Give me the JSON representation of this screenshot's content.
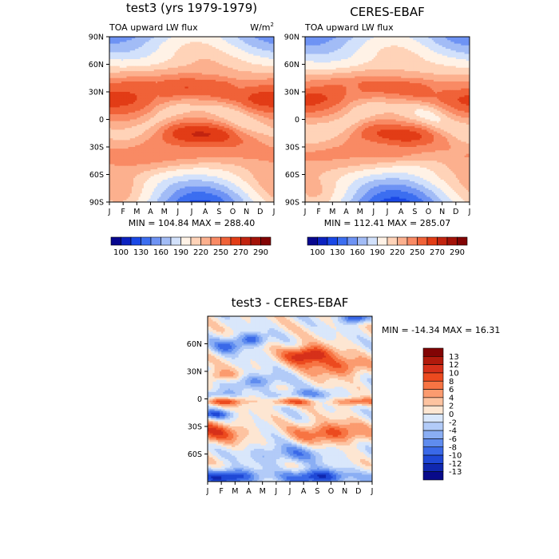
{
  "chart_data": [
    {
      "type": "heatmap",
      "title": "test3 (yrs 1979-1979)",
      "left_label": "TOA upward LW flux",
      "units_label": "W/m",
      "units_exp": "2",
      "xlabel": "",
      "ylabel": "",
      "x_ticks": [
        "J",
        "F",
        "M",
        "A",
        "M",
        "J",
        "J",
        "A",
        "S",
        "O",
        "N",
        "D",
        "J"
      ],
      "y_ticks": [
        "90N",
        "60N",
        "30N",
        "0",
        "30S",
        "60S",
        "90S"
      ],
      "ylim": [
        -90,
        90
      ],
      "stats_text": "MIN = 104.84 MAX = 288.40",
      "min": 104.84,
      "max": 288.4,
      "grid": false
    },
    {
      "type": "heatmap",
      "title": "CERES-EBAF",
      "left_label": "TOA upward LW flux",
      "x_ticks": [
        "J",
        "F",
        "M",
        "A",
        "M",
        "J",
        "J",
        "A",
        "S",
        "O",
        "N",
        "D",
        "J"
      ],
      "y_ticks": [
        "90N",
        "60N",
        "30N",
        "0",
        "30S",
        "60S",
        "90S"
      ],
      "ylim": [
        -90,
        90
      ],
      "stats_text": "MIN = 112.41 MAX = 285.07",
      "min": 112.41,
      "max": 285.07,
      "grid": false
    },
    {
      "type": "heatmap",
      "title": "test3 - CERES-EBAF",
      "x_ticks": [
        "J",
        "F",
        "M",
        "A",
        "M",
        "J",
        "J",
        "A",
        "S",
        "O",
        "N",
        "D",
        "J"
      ],
      "y_ticks": [
        "60N",
        "30N",
        "0",
        "30S",
        "60S"
      ],
      "ylim": [
        -90,
        90
      ],
      "stats_text": "MIN = -14.34 MAX =  16.31",
      "min": -14.34,
      "max": 16.31,
      "grid": false
    }
  ],
  "colorbar_top": {
    "labels": [
      "100",
      "130",
      "160",
      "190",
      "220",
      "250",
      "270",
      "290"
    ],
    "colors": [
      "#08088f",
      "#0c22c0",
      "#1a48e6",
      "#3c6ef0",
      "#6e93f4",
      "#a2bcf6",
      "#d2e1fb",
      "#fff2e6",
      "#ffd3b8",
      "#fcb08e",
      "#f98a64",
      "#f06238",
      "#e23c16",
      "#c22410",
      "#a31208",
      "#820404"
    ]
  },
  "colorbar_diff": {
    "labels": [
      "13",
      "12",
      "10",
      "8",
      "6",
      "4",
      "2",
      "0",
      "-2",
      "-4",
      "-6",
      "-8",
      "-10",
      "-12",
      "-13"
    ],
    "colors": [
      "#820404",
      "#b11a0c",
      "#d6301a",
      "#ec4a1f",
      "#f77443",
      "#fb9b6f",
      "#fdc3a0",
      "#fde6d2",
      "#d9e7fb",
      "#b2cbf8",
      "#8aaef4",
      "#5f8cef",
      "#3a69e8",
      "#1f48d6",
      "#1028b0",
      "#080a8a"
    ]
  }
}
